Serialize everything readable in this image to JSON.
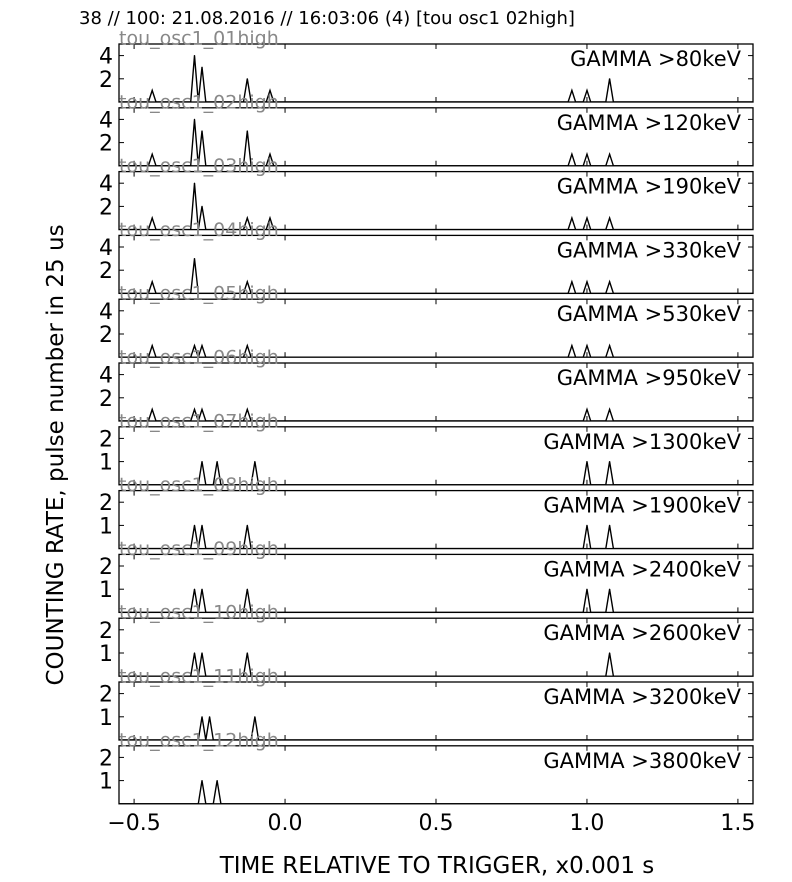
{
  "header": {
    "text": "38 // 100:   21.08.2016 // 16:03:06 (4)  [tou osc1 02high]"
  },
  "chart_data": {
    "type": "line",
    "xlabel": "TIME RELATIVE TO TRIGGER,   x0.001 s",
    "ylabel": "COUNTING RATE,    pulse number in 25 us",
    "xlim": [
      -0.55,
      1.55
    ],
    "xticks": [
      {
        "v": -0.5,
        "label": "−0.5"
      },
      {
        "v": 0.0,
        "label": "0.0"
      },
      {
        "v": 0.5,
        "label": "0.5"
      },
      {
        "v": 1.0,
        "label": "1.0"
      },
      {
        "v": 1.5,
        "label": "1.5"
      }
    ],
    "panels": [
      {
        "tag": "tou_osc1_01high",
        "title": "GAMMA >80keV",
        "ylim": [
          0,
          5
        ],
        "yticks": [
          2,
          4
        ],
        "peaks": [
          [
            -0.44,
            1
          ],
          [
            -0.3,
            4
          ],
          [
            -0.275,
            3
          ],
          [
            -0.125,
            2
          ],
          [
            -0.05,
            1
          ],
          [
            0.95,
            1
          ],
          [
            1.0,
            1
          ],
          [
            1.075,
            2
          ]
        ]
      },
      {
        "tag": "tou_osc1_02high",
        "title": "GAMMA >120keV",
        "ylim": [
          0,
          5
        ],
        "yticks": [
          2,
          4
        ],
        "peaks": [
          [
            -0.44,
            1
          ],
          [
            -0.3,
            4
          ],
          [
            -0.275,
            3
          ],
          [
            -0.125,
            3
          ],
          [
            -0.05,
            1
          ],
          [
            0.95,
            1
          ],
          [
            1.0,
            1
          ],
          [
            1.075,
            1
          ]
        ]
      },
      {
        "tag": "tou_osc1_03high",
        "title": "GAMMA >190keV",
        "ylim": [
          0,
          5
        ],
        "yticks": [
          2,
          4
        ],
        "peaks": [
          [
            -0.44,
            1
          ],
          [
            -0.3,
            4
          ],
          [
            -0.275,
            2
          ],
          [
            -0.125,
            1
          ],
          [
            -0.05,
            1
          ],
          [
            0.95,
            1
          ],
          [
            1.0,
            1
          ],
          [
            1.075,
            1
          ]
        ]
      },
      {
        "tag": "tou_osc1_04high",
        "title": "GAMMA >330keV",
        "ylim": [
          0,
          5
        ],
        "yticks": [
          2,
          4
        ],
        "peaks": [
          [
            -0.44,
            1
          ],
          [
            -0.3,
            3
          ],
          [
            -0.125,
            1
          ],
          [
            0.95,
            1
          ],
          [
            1.0,
            1
          ],
          [
            1.075,
            1
          ]
        ]
      },
      {
        "tag": "tou_osc1_05high",
        "title": "GAMMA >530keV",
        "ylim": [
          0,
          5
        ],
        "yticks": [
          2,
          4
        ],
        "peaks": [
          [
            -0.44,
            1
          ],
          [
            -0.3,
            1
          ],
          [
            -0.275,
            1
          ],
          [
            -0.125,
            1
          ],
          [
            0.95,
            1
          ],
          [
            1.0,
            1
          ],
          [
            1.075,
            1
          ]
        ]
      },
      {
        "tag": "tou_osc1_06high",
        "title": "GAMMA >950keV",
        "ylim": [
          0,
          5
        ],
        "yticks": [
          2,
          4
        ],
        "peaks": [
          [
            -0.44,
            1
          ],
          [
            -0.3,
            1
          ],
          [
            -0.275,
            1
          ],
          [
            -0.125,
            1
          ],
          [
            1.0,
            1
          ],
          [
            1.075,
            1
          ]
        ]
      },
      {
        "tag": "tou_osc1_07high",
        "title": "GAMMA >1300keV",
        "ylim": [
          0,
          2.5
        ],
        "yticks": [
          1,
          2
        ],
        "peaks": [
          [
            -0.275,
            1
          ],
          [
            -0.225,
            1
          ],
          [
            -0.1,
            1
          ],
          [
            1.0,
            1
          ],
          [
            1.075,
            1
          ]
        ]
      },
      {
        "tag": "tou_osc1_08high",
        "title": "GAMMA >1900keV",
        "ylim": [
          0,
          2.5
        ],
        "yticks": [
          1,
          2
        ],
        "peaks": [
          [
            -0.3,
            1
          ],
          [
            -0.275,
            1
          ],
          [
            -0.125,
            1
          ],
          [
            1.0,
            1
          ],
          [
            1.075,
            1
          ]
        ]
      },
      {
        "tag": "tou_osc1_09high",
        "title": "GAMMA >2400keV",
        "ylim": [
          0,
          2.5
        ],
        "yticks": [
          1,
          2
        ],
        "peaks": [
          [
            -0.3,
            1
          ],
          [
            -0.275,
            1
          ],
          [
            -0.125,
            1
          ],
          [
            1.0,
            1
          ],
          [
            1.075,
            1
          ]
        ]
      },
      {
        "tag": "tou_osc1_10high",
        "title": "GAMMA >2600keV",
        "ylim": [
          0,
          2.5
        ],
        "yticks": [
          1,
          2
        ],
        "peaks": [
          [
            -0.3,
            1
          ],
          [
            -0.275,
            1
          ],
          [
            -0.125,
            1
          ],
          [
            1.075,
            1
          ]
        ]
      },
      {
        "tag": "tou_osc1_11high",
        "title": "GAMMA >3200keV",
        "ylim": [
          0,
          2.5
        ],
        "yticks": [
          1,
          2
        ],
        "peaks": [
          [
            -0.275,
            1
          ],
          [
            -0.25,
            1
          ],
          [
            -0.1,
            1
          ]
        ]
      },
      {
        "tag": "tou_osc1_12high",
        "title": "GAMMA >3800keV",
        "ylim": [
          0,
          2.5
        ],
        "yticks": [
          1,
          2
        ],
        "peaks": [
          [
            -0.275,
            1
          ],
          [
            -0.225,
            1
          ]
        ]
      }
    ]
  }
}
